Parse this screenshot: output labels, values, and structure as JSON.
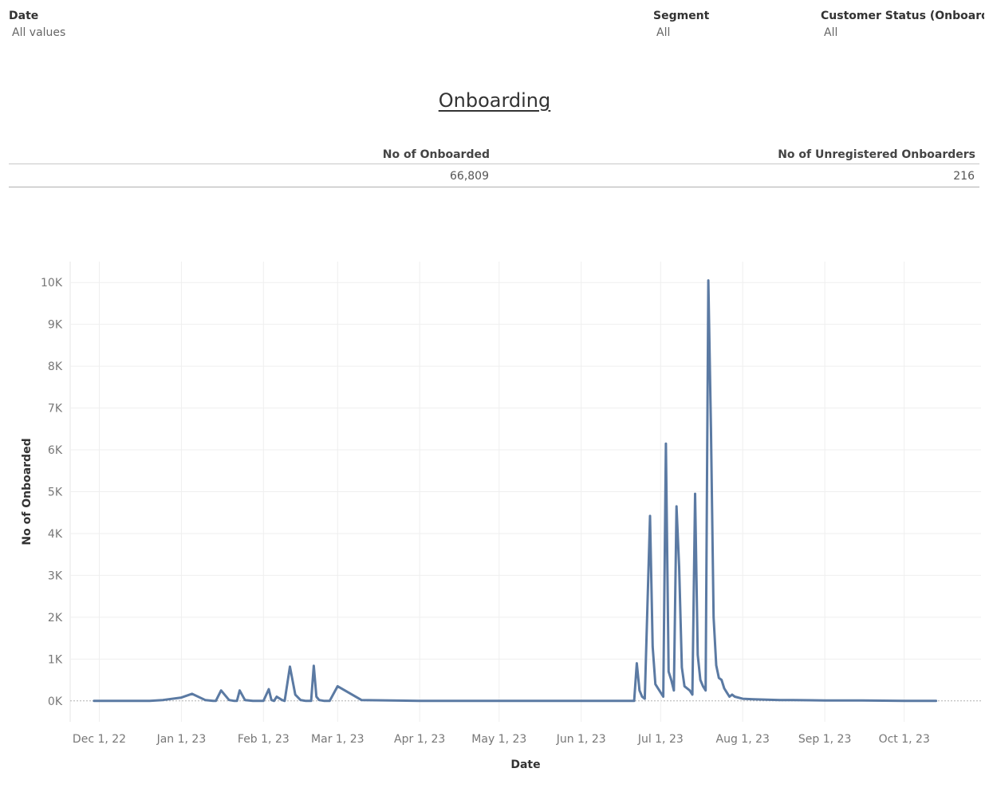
{
  "filters": {
    "date": {
      "label": "Date",
      "value": "All values"
    },
    "segment": {
      "label": "Segment",
      "value": "All"
    },
    "customer_status": {
      "label": "Customer Status (Onboard..",
      "value": "All"
    }
  },
  "title": "Onboarding",
  "kpis": [
    {
      "label": "No of Onboarded",
      "value": "66,809"
    },
    {
      "label": "No of Unregistered Onboarders",
      "value": "216"
    }
  ],
  "colors": {
    "line": "#5b7aa3",
    "grid": "#efefef",
    "zero_line": "#b0b0b0"
  },
  "chart_data": {
    "type": "line",
    "xlabel": "Date",
    "ylabel": "No of Onboarded",
    "x_ticks": [
      "2022-12-01",
      "2023-01-01",
      "2023-02-01",
      "2023-03-01",
      "2023-04-01",
      "2023-05-01",
      "2023-06-01",
      "2023-07-01",
      "2023-08-01",
      "2023-09-01",
      "2023-10-01"
    ],
    "x_tick_labels": [
      "Dec 1, 22",
      "Jan 1, 23",
      "Feb 1, 23",
      "Mar 1, 23",
      "Apr 1, 23",
      "May 1, 23",
      "Jun 1, 23",
      "Jul 1, 23",
      "Aug 1, 23",
      "Sep 1, 23",
      "Oct 1, 23"
    ],
    "y_ticks": [
      0,
      1000,
      2000,
      3000,
      4000,
      5000,
      6000,
      7000,
      8000,
      9000,
      10000
    ],
    "y_tick_labels": [
      "0K",
      "1K",
      "2K",
      "3K",
      "4K",
      "5K",
      "6K",
      "7K",
      "8K",
      "9K",
      "10K"
    ],
    "ylim": [
      -500,
      10500
    ],
    "xlim": [
      "2022-11-20",
      "2023-10-30"
    ],
    "grid": true,
    "series": [
      {
        "x": [
          "2022-11-29",
          "2022-12-05",
          "2022-12-10",
          "2022-12-15",
          "2022-12-20",
          "2022-12-25",
          "2023-01-01",
          "2023-01-05",
          "2023-01-10",
          "2023-01-13",
          "2023-01-14",
          "2023-01-16",
          "2023-01-19",
          "2023-01-21",
          "2023-01-22",
          "2023-01-23",
          "2023-01-25",
          "2023-01-28",
          "2023-02-01",
          "2023-02-03",
          "2023-02-04",
          "2023-02-05",
          "2023-02-06",
          "2023-02-08",
          "2023-02-09",
          "2023-02-11",
          "2023-02-13",
          "2023-02-15",
          "2023-02-17",
          "2023-02-18",
          "2023-02-19",
          "2023-02-20",
          "2023-02-21",
          "2023-02-22",
          "2023-02-24",
          "2023-02-25",
          "2023-02-26",
          "2023-03-01",
          "2023-03-10",
          "2023-04-01",
          "2023-05-01",
          "2023-06-01",
          "2023-06-10",
          "2023-06-13",
          "2023-06-14",
          "2023-06-15",
          "2023-06-19",
          "2023-06-20",
          "2023-06-21",
          "2023-06-22",
          "2023-06-23",
          "2023-06-24",
          "2023-06-25",
          "2023-06-27",
          "2023-06-28",
          "2023-06-29",
          "2023-07-02",
          "2023-07-03",
          "2023-07-04",
          "2023-07-05",
          "2023-07-06",
          "2023-07-07",
          "2023-07-08",
          "2023-07-09",
          "2023-07-10",
          "2023-07-12",
          "2023-07-13",
          "2023-07-14",
          "2023-07-15",
          "2023-07-16",
          "2023-07-17",
          "2023-07-18",
          "2023-07-19",
          "2023-07-20",
          "2023-07-21",
          "2023-07-22",
          "2023-07-23",
          "2023-07-24",
          "2023-07-25",
          "2023-07-26",
          "2023-07-27",
          "2023-07-28",
          "2023-07-29",
          "2023-08-01",
          "2023-08-05",
          "2023-08-10",
          "2023-08-15",
          "2023-08-20",
          "2023-09-01",
          "2023-09-15",
          "2023-10-01",
          "2023-10-13"
        ],
        "y": [
          0,
          0,
          0,
          0,
          0,
          20,
          80,
          170,
          20,
          0,
          0,
          250,
          20,
          0,
          0,
          250,
          20,
          0,
          0,
          280,
          20,
          0,
          100,
          20,
          0,
          820,
          150,
          20,
          0,
          0,
          0,
          840,
          100,
          20,
          0,
          0,
          0,
          350,
          20,
          0,
          0,
          0,
          0,
          0,
          0,
          0,
          0,
          0,
          0,
          900,
          250,
          100,
          50,
          4420,
          1300,
          400,
          100,
          6150,
          700,
          500,
          250,
          4650,
          3200,
          800,
          350,
          250,
          150,
          4950,
          1100,
          500,
          350,
          250,
          10050,
          6500,
          2000,
          850,
          550,
          500,
          300,
          200,
          100,
          150,
          100,
          50,
          40,
          30,
          20,
          20,
          10,
          10,
          0,
          0
        ]
      }
    ]
  }
}
